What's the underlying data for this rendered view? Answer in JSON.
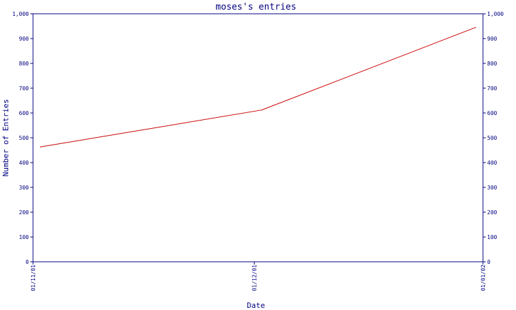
{
  "chart_data": {
    "type": "line",
    "title": "moses's entries",
    "xlabel": "Date",
    "ylabel": "Number of Entries",
    "x_ticks": [
      "01/11/01",
      "01/12/01",
      "01/01/02"
    ],
    "y_ticks": [
      "0",
      "100",
      "200",
      "300",
      "400",
      "500",
      "600",
      "700",
      "800",
      "900",
      "1,000"
    ],
    "ylim": [
      0,
      1000
    ],
    "xlim": [
      "2001-11-01",
      "2002-01-01"
    ],
    "grid": false,
    "legend": "none",
    "series": [
      {
        "x": [
          "2001-11-02",
          "2001-12-02",
          "2001-12-31"
        ],
        "values": [
          463,
          612,
          945
        ],
        "color": "#cc0000"
      }
    ],
    "colors": {
      "axis": "#000080",
      "text": "#000080",
      "line": "#cc0000",
      "background": "#ffffff"
    }
  }
}
